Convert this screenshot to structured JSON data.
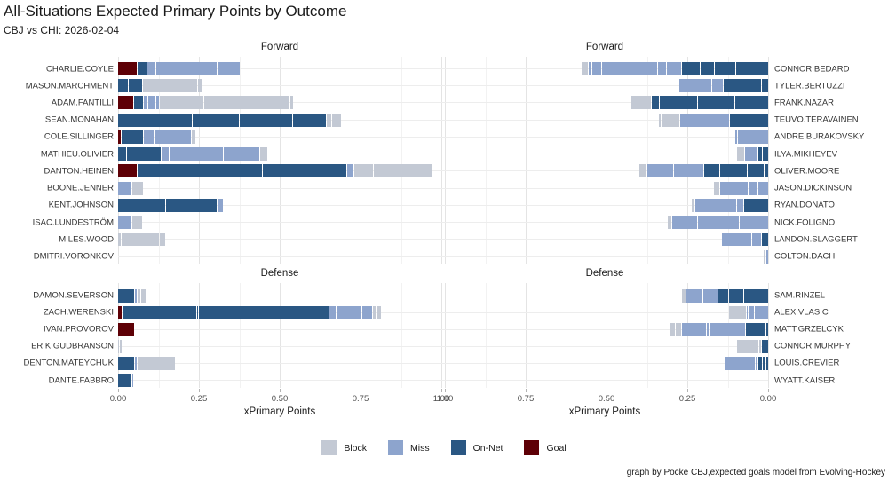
{
  "header": {
    "title": "All-Situations Expected Primary Points by Outcome",
    "subtitle": "CBJ vs CHI: 2026-02-04"
  },
  "caption": "graph by Pocke CBJ,expected goals model from Evolving-Hockey",
  "axis": {
    "title": "xPrimary Points",
    "ticks": [
      "0.00",
      "0.25",
      "0.50",
      "0.75",
      "1.00"
    ]
  },
  "palette": {
    "block": "#c3c9d4",
    "miss": "#8da4cd",
    "on_net": "#2a5783",
    "goal": "#5e0006"
  },
  "legend": {
    "items": [
      {
        "label": "Block",
        "key": "block"
      },
      {
        "label": "Miss",
        "key": "miss"
      },
      {
        "label": "On-Net",
        "key": "on_net"
      },
      {
        "label": "Goal",
        "key": "goal"
      }
    ]
  },
  "chart_data": {
    "type": "bar",
    "variant": "horizontal-stacked-mirrored",
    "xlabel": "xPrimary Points",
    "xlim": [
      0,
      1
    ],
    "tick_values": [
      0,
      0.25,
      0.5,
      0.75,
      1.0
    ],
    "grid": true,
    "legend_position": "bottom",
    "facets": [
      {
        "title": "Forward",
        "side": "left",
        "rows": [
          {
            "player": "CHARLIE.COYLE",
            "segments": [
              [
                "goal",
                0.057
              ],
              [
                "on_net",
                0.027
              ],
              [
                "miss",
                0.027
              ],
              [
                "miss",
                0.185
              ],
              [
                "miss",
                0.07
              ]
            ]
          },
          {
            "player": "MASON.MARCHMENT",
            "segments": [
              [
                "on_net",
                0.029
              ],
              [
                "on_net",
                0.043
              ],
              [
                "block",
                0.13
              ],
              [
                "block",
                0.033
              ],
              [
                "block",
                0.013
              ]
            ]
          },
          {
            "player": "ADAM.FANTILLI",
            "segments": [
              [
                "goal",
                0.046
              ],
              [
                "on_net",
                0.027
              ],
              [
                "miss",
                0.013
              ],
              [
                "miss",
                0.022
              ],
              [
                "miss",
                0.007
              ],
              [
                "block",
                0.135
              ],
              [
                "block",
                0.016
              ],
              [
                "block",
                0.245
              ],
              [
                "block",
                0.009
              ]
            ]
          },
          {
            "player": "SEAN.MONAHAN",
            "segments": [
              [
                "on_net",
                0.227
              ],
              [
                "on_net",
                0.144
              ],
              [
                "on_net",
                0.161
              ],
              [
                "on_net",
                0.103
              ],
              [
                "block",
                0.014
              ],
              [
                "block",
                0.026
              ]
            ]
          },
          {
            "player": "COLE.SILLINGER",
            "segments": [
              [
                "goal",
                0.007
              ],
              [
                "on_net",
                0.068
              ],
              [
                "miss",
                0.03
              ],
              [
                "miss",
                0.112
              ],
              [
                "block",
                0.011
              ]
            ]
          },
          {
            "player": "MATHIEU.OLIVIER",
            "segments": [
              [
                "on_net",
                0.026
              ],
              [
                "on_net",
                0.103
              ],
              [
                "miss",
                0.023
              ],
              [
                "miss",
                0.165
              ],
              [
                "miss",
                0.11
              ],
              [
                "block",
                0.021
              ]
            ]
          },
          {
            "player": "DANTON.HEINEN",
            "segments": [
              [
                "goal",
                0.058
              ],
              [
                "on_net",
                0.383
              ],
              [
                "on_net",
                0.26
              ],
              [
                "miss",
                0.018
              ],
              [
                "block",
                0.044
              ],
              [
                "block",
                0.011
              ],
              [
                "block",
                0.18
              ]
            ]
          },
          {
            "player": "BOONE.JENNER",
            "segments": [
              [
                "miss",
                0.042
              ],
              [
                "block",
                0.031
              ]
            ]
          },
          {
            "player": "KENT.JOHNSON",
            "segments": [
              [
                "on_net",
                0.146
              ],
              [
                "on_net",
                0.157
              ],
              [
                "miss",
                0.017
              ]
            ]
          },
          {
            "player": "ISAC.LUNDESTRÖM",
            "segments": [
              [
                "miss",
                0.042
              ],
              [
                "block",
                0.029
              ]
            ]
          },
          {
            "player": "MILES.WOOD",
            "segments": [
              [
                "block",
                0.007
              ],
              [
                "block",
                0.116
              ],
              [
                "block",
                0.016
              ]
            ]
          },
          {
            "player": "DMITRI.VORONKOV",
            "segments": []
          }
        ]
      },
      {
        "title": "Forward",
        "side": "right",
        "rows": [
          {
            "player": "CONNOR.BEDARD",
            "segments": [
              [
                "on_net",
                0.098
              ],
              [
                "on_net",
                0.064
              ],
              [
                "on_net",
                0.041
              ],
              [
                "on_net",
                0.055
              ],
              [
                "miss",
                0.044
              ],
              [
                "miss",
                0.025
              ],
              [
                "miss",
                0.17
              ],
              [
                "miss",
                0.027
              ],
              [
                "miss",
                0.01
              ],
              [
                "block",
                0.018
              ]
            ]
          },
          {
            "player": "TYLER.BERTUZZI",
            "segments": [
              [
                "on_net",
                0.018
              ],
              [
                "on_net",
                0.117
              ],
              [
                "miss",
                0.032
              ],
              [
                "miss",
                0.1
              ]
            ]
          },
          {
            "player": "FRANK.NAZAR",
            "segments": [
              [
                "on_net",
                0.103
              ],
              [
                "on_net",
                0.112
              ],
              [
                "on_net",
                0.114
              ],
              [
                "on_net",
                0.023
              ],
              [
                "block",
                0.059
              ]
            ]
          },
          {
            "player": "TEUVO.TERAVAINEN",
            "segments": [
              [
                "on_net",
                0.119
              ],
              [
                "miss",
                0.151
              ],
              [
                "block",
                0.055
              ],
              [
                "block",
                0.006
              ]
            ]
          },
          {
            "player": "ANDRE.BURAKOVSKY",
            "segments": [
              [
                "miss",
                0.083
              ],
              [
                "miss",
                0.007
              ],
              [
                "miss",
                0.007
              ]
            ]
          },
          {
            "player": "ILYA.MIKHEYEV",
            "segments": [
              [
                "on_net",
                0.016
              ],
              [
                "on_net",
                0.011
              ],
              [
                "miss",
                0.038
              ],
              [
                "block",
                0.023
              ]
            ]
          },
          {
            "player": "OLIVER.MOORE",
            "segments": [
              [
                "on_net",
                0.012
              ],
              [
                "on_net",
                0.048
              ],
              [
                "on_net",
                0.082
              ],
              [
                "on_net",
                0.047
              ],
              [
                "miss",
                0.09
              ],
              [
                "miss",
                0.08
              ],
              [
                "block",
                0.024
              ]
            ]
          },
          {
            "player": "JASON.DICKINSON",
            "segments": [
              [
                "miss",
                0.03
              ],
              [
                "miss",
                0.027
              ],
              [
                "miss",
                0.087
              ],
              [
                "block",
                0.016
              ]
            ]
          },
          {
            "player": "RYAN.DONATO",
            "segments": [
              [
                "on_net",
                0.075
              ],
              [
                "miss",
                0.018
              ],
              [
                "miss",
                0.128
              ],
              [
                "block",
                0.006
              ]
            ]
          },
          {
            "player": "NICK.FOLIGNO",
            "segments": [
              [
                "miss",
                0.087
              ],
              [
                "miss",
                0.126
              ],
              [
                "miss",
                0.078
              ],
              [
                "block",
                0.01
              ]
            ]
          },
          {
            "player": "LANDON.SLAGGERT",
            "segments": [
              [
                "on_net",
                0.018
              ],
              [
                "miss",
                0.028
              ],
              [
                "miss",
                0.092
              ]
            ]
          },
          {
            "player": "COLTON.DACH",
            "segments": [
              [
                "miss",
                0.006
              ],
              [
                "block",
                0.005
              ]
            ]
          }
        ]
      },
      {
        "title": "Defense",
        "side": "left",
        "rows": [
          {
            "player": "DAMON.SEVERSON",
            "segments": [
              [
                "on_net",
                0.05
              ],
              [
                "miss",
                0.005
              ],
              [
                "block",
                0.007
              ],
              [
                "block",
                0.016
              ]
            ]
          },
          {
            "player": "ZACH.WERENSKI",
            "segments": [
              [
                "goal",
                0.012
              ],
              [
                "on_net",
                0.226
              ],
              [
                "on_net",
                0.005
              ],
              [
                "on_net",
                0.4
              ],
              [
                "miss",
                0.02
              ],
              [
                "miss",
                0.075
              ],
              [
                "miss",
                0.032
              ],
              [
                "block",
                0.009
              ],
              [
                "block",
                0.012
              ]
            ]
          },
          {
            "player": "IVAN.PROVOROV",
            "segments": [
              [
                "goal",
                0.05
              ]
            ]
          },
          {
            "player": "ERIK.GUDBRANSON",
            "segments": [
              [
                "block",
                0.004
              ],
              [
                "block",
                0.004
              ]
            ]
          },
          {
            "player": "DENTON.MATEYCHUK",
            "segments": [
              [
                "on_net",
                0.05
              ],
              [
                "miss",
                0.004
              ],
              [
                "block",
                0.115
              ]
            ]
          },
          {
            "player": "DANTE.FABBRO",
            "segments": [
              [
                "on_net",
                0.04
              ],
              [
                "miss",
                0.004
              ]
            ]
          }
        ]
      },
      {
        "title": "Defense",
        "side": "right",
        "rows": [
          {
            "player": "SAM.RINZEL",
            "segments": [
              [
                "on_net",
                0.075
              ],
              [
                "on_net",
                0.044
              ],
              [
                "on_net",
                0.029
              ],
              [
                "miss",
                0.045
              ],
              [
                "miss",
                0.05
              ],
              [
                "block",
                0.011
              ]
            ]
          },
          {
            "player": "ALEX.VLASIC",
            "segments": [
              [
                "miss",
                0.033
              ],
              [
                "miss",
                0.005
              ],
              [
                "miss",
                0.016
              ],
              [
                "miss",
                0.005
              ],
              [
                "block",
                0.05
              ]
            ]
          },
          {
            "player": "MATT.GRZELCYK",
            "segments": [
              [
                "on_net",
                0.006
              ],
              [
                "on_net",
                0.06
              ],
              [
                "miss",
                0.11
              ],
              [
                "miss",
                0.006
              ],
              [
                "miss",
                0.075
              ],
              [
                "block",
                0.016
              ],
              [
                "block",
                0.012
              ]
            ]
          },
          {
            "player": "CONNOR.MURPHY",
            "segments": [
              [
                "on_net",
                0.018
              ],
              [
                "block",
                0.008
              ],
              [
                "block",
                0.064
              ]
            ]
          },
          {
            "player": "LOUIS.CREVIER",
            "segments": [
              [
                "on_net",
                0.005
              ],
              [
                "on_net",
                0.008
              ],
              [
                "on_net",
                0.011
              ],
              [
                "miss",
                0.007
              ],
              [
                "miss",
                0.093
              ]
            ]
          },
          {
            "player": "WYATT.KAISER",
            "segments": []
          }
        ]
      }
    ]
  }
}
